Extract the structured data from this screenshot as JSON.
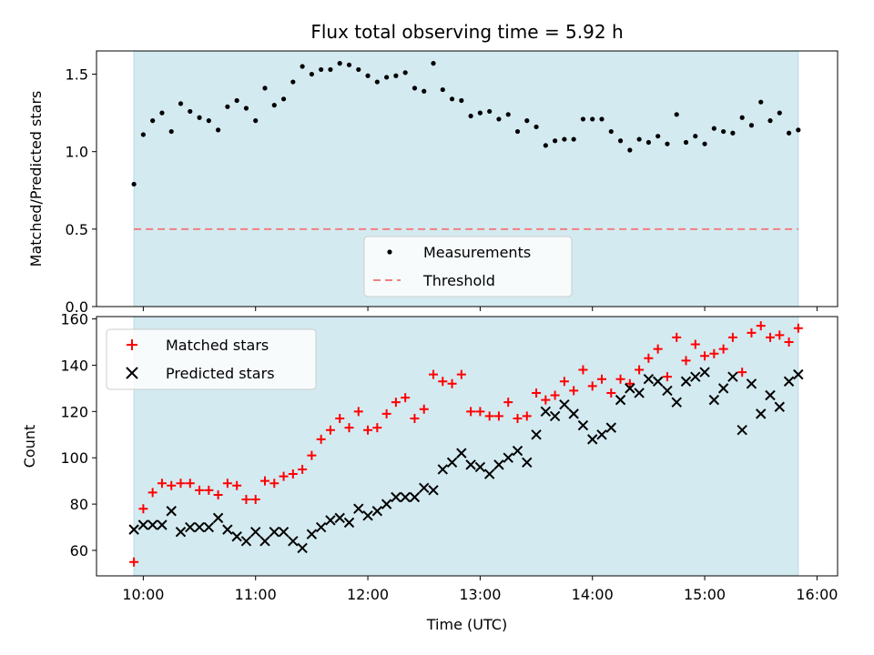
{
  "chart_data": {
    "title": "Flux total observing time = 5.92 h",
    "xlabel": "Time (UTC)",
    "x_ticks": [
      "10:00",
      "11:00",
      "12:00",
      "13:00",
      "14:00",
      "15:00",
      "16:00"
    ],
    "xlim": [
      "09:35",
      "16:11"
    ],
    "observing_window": [
      "09:55",
      "15:50"
    ],
    "colors": {
      "window": "#d4eaf1",
      "threshold": "#f08080",
      "measurements": "#000000",
      "matched": "#ff0000",
      "predicted": "#000000"
    },
    "panels": [
      {
        "type": "scatter",
        "ylabel": "Matched/Predicted stars",
        "ylim": [
          0,
          1.65
        ],
        "y_ticks": [
          "0.0",
          "0.5",
          "1.0",
          "1.5"
        ],
        "legend": {
          "placement": "lower-center",
          "entries": [
            "Measurements",
            "Threshold"
          ]
        },
        "threshold": 0.5,
        "series": [
          {
            "name": "Measurements",
            "x": [
              "09:55",
              "10:00",
              "10:05",
              "10:10",
              "10:15",
              "10:20",
              "10:25",
              "10:30",
              "10:35",
              "10:40",
              "10:45",
              "10:50",
              "10:55",
              "11:00",
              "11:05",
              "11:10",
              "11:15",
              "11:20",
              "11:25",
              "11:30",
              "11:35",
              "11:40",
              "11:45",
              "11:50",
              "11:55",
              "12:00",
              "12:05",
              "12:10",
              "12:15",
              "12:20",
              "12:25",
              "12:30",
              "12:35",
              "12:40",
              "12:45",
              "12:50",
              "12:55",
              "13:00",
              "13:05",
              "13:10",
              "13:15",
              "13:20",
              "13:25",
              "13:30",
              "13:35",
              "13:40",
              "13:45",
              "13:50",
              "13:55",
              "14:00",
              "14:05",
              "14:10",
              "14:15",
              "14:20",
              "14:25",
              "14:30",
              "14:35",
              "14:40",
              "14:45",
              "14:50",
              "14:55",
              "15:00",
              "15:05",
              "15:10",
              "15:15",
              "15:20",
              "15:25",
              "15:30",
              "15:35",
              "15:40",
              "15:45",
              "15:50"
            ],
            "y": [
              0.79,
              1.11,
              1.2,
              1.25,
              1.13,
              1.31,
              1.26,
              1.22,
              1.2,
              1.14,
              1.29,
              1.33,
              1.28,
              1.2,
              1.41,
              1.3,
              1.34,
              1.45,
              1.55,
              1.5,
              1.53,
              1.53,
              1.57,
              1.56,
              1.53,
              1.49,
              1.45,
              1.48,
              1.49,
              1.51,
              1.41,
              1.39,
              1.57,
              1.4,
              1.34,
              1.33,
              1.23,
              1.25,
              1.26,
              1.21,
              1.24,
              1.13,
              1.2,
              1.16,
              1.04,
              1.07,
              1.08,
              1.08,
              1.21,
              1.21,
              1.21,
              1.13,
              1.07,
              1.01,
              1.08,
              1.06,
              1.1,
              1.05,
              1.24,
              1.06,
              1.1,
              1.05,
              1.15,
              1.13,
              1.12,
              1.22,
              1.17,
              1.32,
              1.2,
              1.25,
              1.12,
              1.14
            ]
          }
        ]
      },
      {
        "type": "scatter",
        "ylabel": "Count",
        "ylim": [
          49,
          161
        ],
        "y_ticks": [
          "60",
          "80",
          "100",
          "120",
          "140",
          "160"
        ],
        "legend": {
          "placement": "upper-left",
          "entries": [
            "Matched stars",
            "Predicted stars"
          ]
        },
        "series": [
          {
            "name": "Matched stars",
            "marker": "plus",
            "x": [
              "09:55",
              "10:00",
              "10:05",
              "10:10",
              "10:15",
              "10:20",
              "10:25",
              "10:30",
              "10:35",
              "10:40",
              "10:45",
              "10:50",
              "10:55",
              "11:00",
              "11:05",
              "11:10",
              "11:15",
              "11:20",
              "11:25",
              "11:30",
              "11:35",
              "11:40",
              "11:45",
              "11:50",
              "11:55",
              "12:00",
              "12:05",
              "12:10",
              "12:15",
              "12:20",
              "12:25",
              "12:30",
              "12:35",
              "12:40",
              "12:45",
              "12:50",
              "12:55",
              "13:00",
              "13:05",
              "13:10",
              "13:15",
              "13:20",
              "13:25",
              "13:30",
              "13:35",
              "13:40",
              "13:45",
              "13:50",
              "13:55",
              "14:00",
              "14:05",
              "14:10",
              "14:15",
              "14:20",
              "14:25",
              "14:30",
              "14:35",
              "14:40",
              "14:45",
              "14:50",
              "14:55",
              "15:00",
              "15:05",
              "15:10",
              "15:15",
              "15:20",
              "15:25",
              "15:30",
              "15:35",
              "15:40",
              "15:45",
              "15:50"
            ],
            "y": [
              55,
              78,
              85,
              89,
              88,
              89,
              89,
              86,
              86,
              84,
              89,
              88,
              82,
              82,
              90,
              89,
              92,
              93,
              95,
              101,
              108,
              112,
              117,
              113,
              120,
              112,
              113,
              119,
              124,
              126,
              117,
              121,
              136,
              133,
              132,
              136,
              120,
              120,
              118,
              118,
              124,
              117,
              118,
              128,
              125,
              127,
              133,
              129,
              138,
              131,
              134,
              128,
              134,
              132,
              138,
              143,
              147,
              135,
              152,
              142,
              149,
              144,
              145,
              147,
              152,
              137,
              154,
              157,
              152,
              153,
              150,
              156
            ]
          },
          {
            "name": "Predicted stars",
            "marker": "x",
            "x": [
              "09:55",
              "10:00",
              "10:05",
              "10:10",
              "10:15",
              "10:20",
              "10:25",
              "10:30",
              "10:35",
              "10:40",
              "10:45",
              "10:50",
              "10:55",
              "11:00",
              "11:05",
              "11:10",
              "11:15",
              "11:20",
              "11:25",
              "11:30",
              "11:35",
              "11:40",
              "11:45",
              "11:50",
              "11:55",
              "12:00",
              "12:05",
              "12:10",
              "12:15",
              "12:20",
              "12:25",
              "12:30",
              "12:35",
              "12:40",
              "12:45",
              "12:50",
              "12:55",
              "13:00",
              "13:05",
              "13:10",
              "13:15",
              "13:20",
              "13:25",
              "13:30",
              "13:35",
              "13:40",
              "13:45",
              "13:50",
              "13:55",
              "14:00",
              "14:05",
              "14:10",
              "14:15",
              "14:20",
              "14:25",
              "14:30",
              "14:35",
              "14:40",
              "14:45",
              "14:50",
              "14:55",
              "15:00",
              "15:05",
              "15:10",
              "15:15",
              "15:20",
              "15:25",
              "15:30",
              "15:35",
              "15:40",
              "15:45",
              "15:50"
            ],
            "y": [
              69,
              71,
              71,
              71,
              77,
              68,
              70,
              70,
              70,
              74,
              69,
              66,
              64,
              68,
              64,
              68,
              68,
              64,
              61,
              67,
              70,
              73,
              74,
              72,
              78,
              75,
              77,
              80,
              83,
              83,
              83,
              87,
              86,
              95,
              98,
              102,
              97,
              96,
              93,
              97,
              100,
              103,
              98,
              110,
              120,
              118,
              123,
              119,
              114,
              108,
              110,
              113,
              125,
              130,
              128,
              134,
              133,
              129,
              124,
              133,
              135,
              137,
              125,
              130,
              135,
              112,
              132,
              119,
              127,
              122,
              133,
              136
            ]
          }
        ]
      }
    ]
  }
}
